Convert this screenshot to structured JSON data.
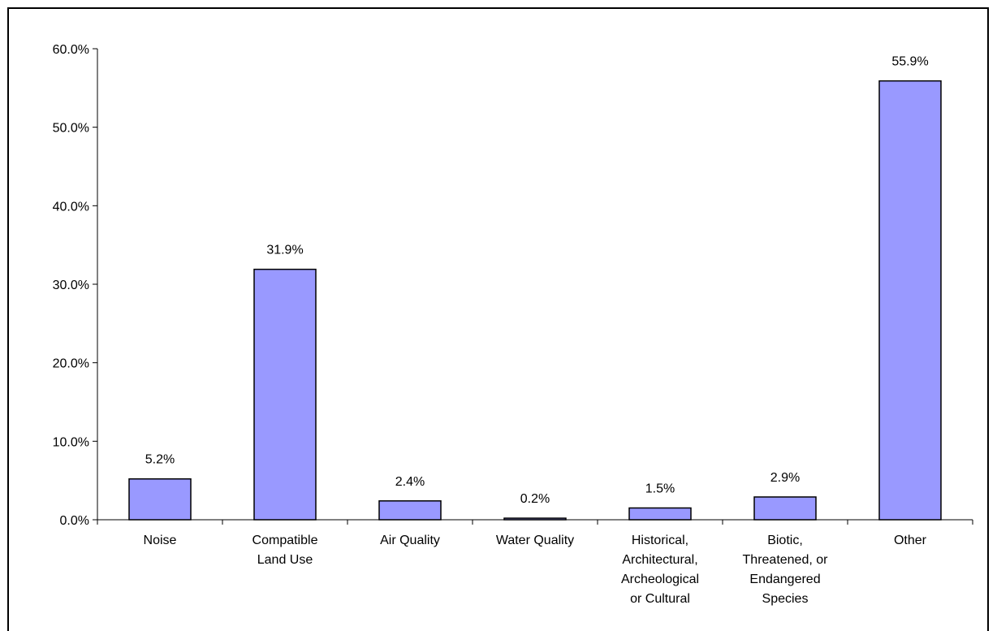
{
  "chart_data": {
    "type": "bar",
    "categories": [
      "Noise",
      "Compatible Land Use",
      "Air Quality",
      "Water Quality",
      "Historical, Architectural, Archeological or Cultural",
      "Biotic, Threatened, or Endangered Species",
      "Other"
    ],
    "category_lines": [
      [
        "Noise"
      ],
      [
        "Compatible",
        "Land Use"
      ],
      [
        "Air Quality"
      ],
      [
        "Water Quality"
      ],
      [
        "Historical,",
        "Architectural,",
        "Archeological",
        "or Cultural"
      ],
      [
        "Biotic,",
        "Threatened, or",
        "Endangered",
        "Species"
      ],
      [
        "Other"
      ]
    ],
    "values": [
      5.2,
      31.9,
      2.4,
      0.2,
      1.5,
      2.9,
      55.9
    ],
    "data_labels": [
      "5.2%",
      "31.9%",
      "2.4%",
      "0.2%",
      "1.5%",
      "2.9%",
      "55.9%"
    ],
    "y_ticks": [
      0,
      10,
      20,
      30,
      40,
      50,
      60
    ],
    "y_tick_labels": [
      "0.0%",
      "10.0%",
      "20.0%",
      "30.0%",
      "40.0%",
      "50.0%",
      "60.0%"
    ],
    "ylim": [
      0,
      60
    ],
    "title": "",
    "xlabel": "",
    "ylabel": "",
    "grid": false,
    "legend": "none",
    "bar_color": "#9999ff",
    "bar_edge_color": "#000000"
  }
}
